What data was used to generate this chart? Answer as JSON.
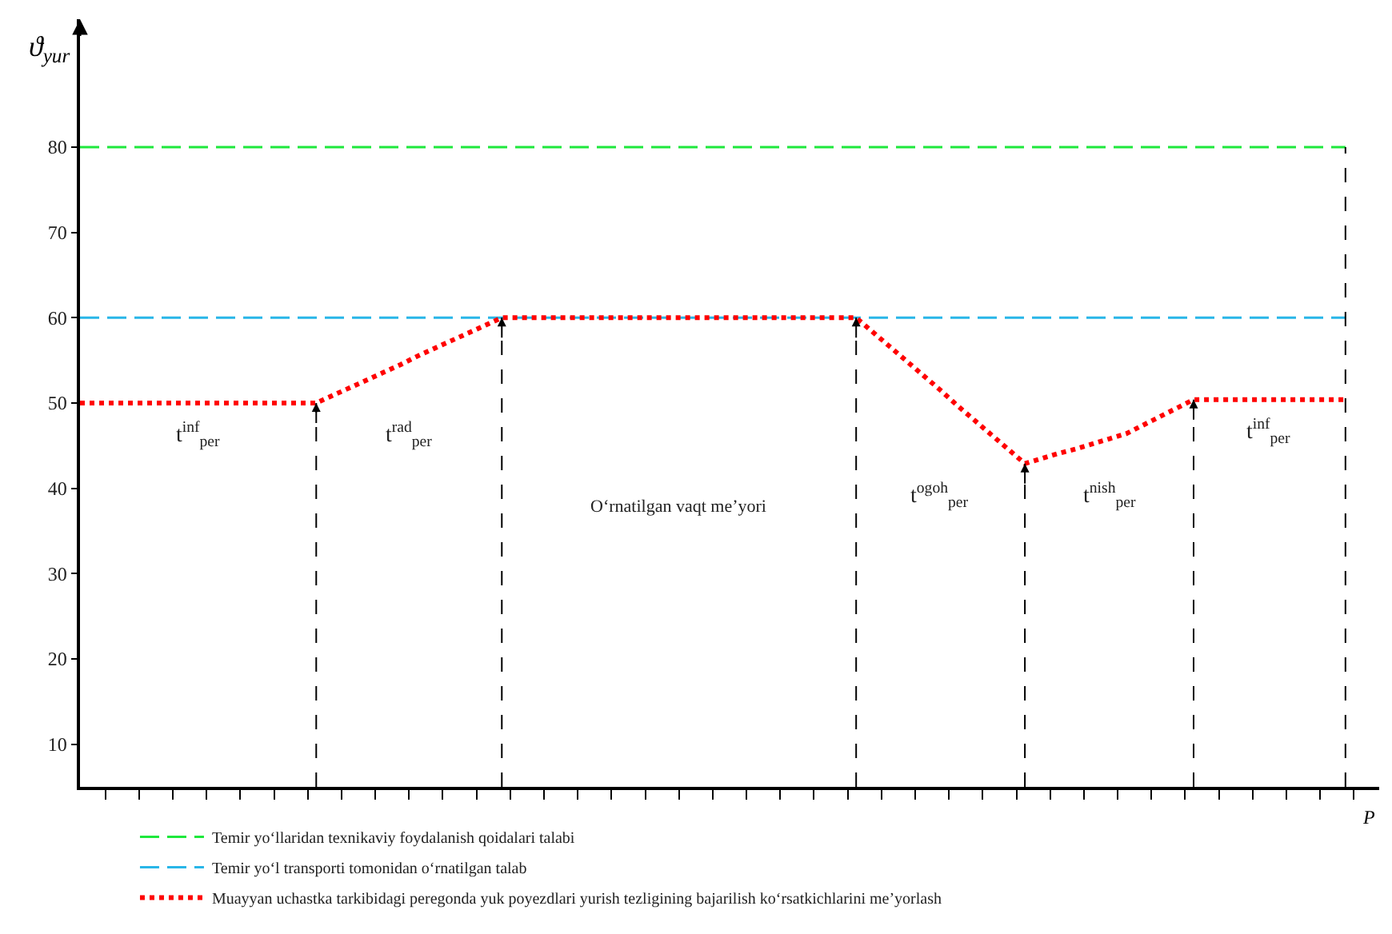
{
  "chart_data": {
    "type": "line",
    "xlabel": "P",
    "ylabel": "ϑ$_{yur}$",
    "categories": [
      null,
      null,
      null,
      null,
      null,
      null,
      null,
      null,
      null,
      null,
      null,
      null,
      null,
      null,
      null,
      null,
      null,
      null,
      null,
      null,
      null,
      null,
      null,
      null,
      null,
      null,
      null,
      null,
      null,
      null,
      null,
      null,
      null,
      null,
      null,
      null,
      null,
      null,
      null,
      null,
      null,
      null,
      null,
      null,
      null,
      null,
      null,
      null,
      null,
      null,
      null,
      null,
      null,
      null,
      null,
      null,
      null,
      null,
      null,
      null,
      null,
      null,
      null,
      null,
      null,
      null,
      null,
      null,
      null,
      null,
      null,
      null,
      null,
      null,
      null,
      null
    ],
    "ylim": [
      5,
      95
    ],
    "yticks": [
      10,
      20,
      30,
      40,
      50,
      60,
      70,
      80
    ],
    "tick_labels": "y",
    "legend": "bottom",
    "marker": "none",
    "series": [
      {
        "name": "Temir yo‘llaridan texnikaviy foydalanish qoidalari talabi",
        "color": "#1ee83c",
        "line_style": "dashed",
        "values": [
          80,
          80,
          80,
          80,
          80,
          80,
          80,
          80,
          80,
          80,
          80,
          80,
          80,
          80,
          80,
          80,
          80,
          80,
          80,
          80,
          80,
          80,
          80,
          80,
          80,
          80,
          80,
          80,
          80,
          80,
          80,
          80,
          80,
          80,
          80,
          80,
          80,
          80,
          80,
          80,
          80,
          80,
          80,
          80,
          80,
          80,
          80,
          80,
          80,
          80,
          80,
          80,
          80,
          80,
          80,
          80,
          80,
          80,
          80,
          80,
          80,
          80,
          80,
          80,
          80,
          80,
          80,
          80,
          80,
          80,
          80,
          80,
          80,
          80,
          80,
          80
        ]
      },
      {
        "name": "Temir yo‘l transporti tomonidan o‘rnatilgan talab",
        "color": "#29b6e8",
        "line_style": "dashed",
        "values": [
          60,
          60,
          60,
          60,
          60,
          60,
          60,
          60,
          60,
          60,
          60,
          60,
          60,
          60,
          60,
          60,
          60,
          60,
          60,
          60,
          60,
          60,
          60,
          60,
          60,
          60,
          60,
          60,
          60,
          60,
          60,
          60,
          60,
          60,
          60,
          60,
          60,
          60,
          60,
          60,
          60,
          60,
          60,
          60,
          60,
          60,
          60,
          60,
          60,
          60,
          60,
          60,
          60,
          60,
          60,
          60,
          60,
          60,
          60,
          60,
          60,
          60,
          60,
          60,
          60,
          60,
          60,
          60,
          60,
          60,
          60,
          60,
          60,
          60,
          60,
          60
        ]
      },
      {
        "name": "Muayyan uchastka tarkibidagi peregonda yuk poyezdlari yurish tezligining bajarilish ko‘rsatkichlarini me’yorlash",
        "color": "#ff0000",
        "line_style": "dotted",
        "values": [
          50,
          50,
          50,
          50,
          50,
          50,
          50,
          50,
          50,
          50,
          50,
          50,
          50,
          50,
          50,
          50.9,
          51.8,
          52.7,
          53.6,
          54.5,
          55.5,
          56.4,
          57.3,
          58.2,
          59.1,
          60,
          60,
          60,
          60,
          60,
          60,
          60,
          60,
          60,
          60,
          60,
          60,
          60,
          60,
          60,
          60,
          60,
          60,
          60,
          60,
          60,
          60,
          58.3,
          56.6,
          54.9,
          53.2,
          51.5,
          49.7,
          48.0,
          46.3,
          44.6,
          42.9,
          43.5,
          44.1,
          44.6,
          45.2,
          45.8,
          46.4,
          47.4,
          48.4,
          49.4,
          50.4,
          50.4,
          50.4,
          50.4,
          50.4,
          50.4,
          50.4,
          50.4,
          50.4,
          50.4
        ]
      }
    ],
    "annotations": [
      "t$^{inf}$$_{per}$",
      "t$^{rad}$$_{per}$",
      "O‘rnatilgan vaqt me’yori",
      "t$^{ogoh}$$_{per}$",
      "t$^{nish}$$_{per}$",
      "t$^{inf}$$_{per}$"
    ]
  }
}
